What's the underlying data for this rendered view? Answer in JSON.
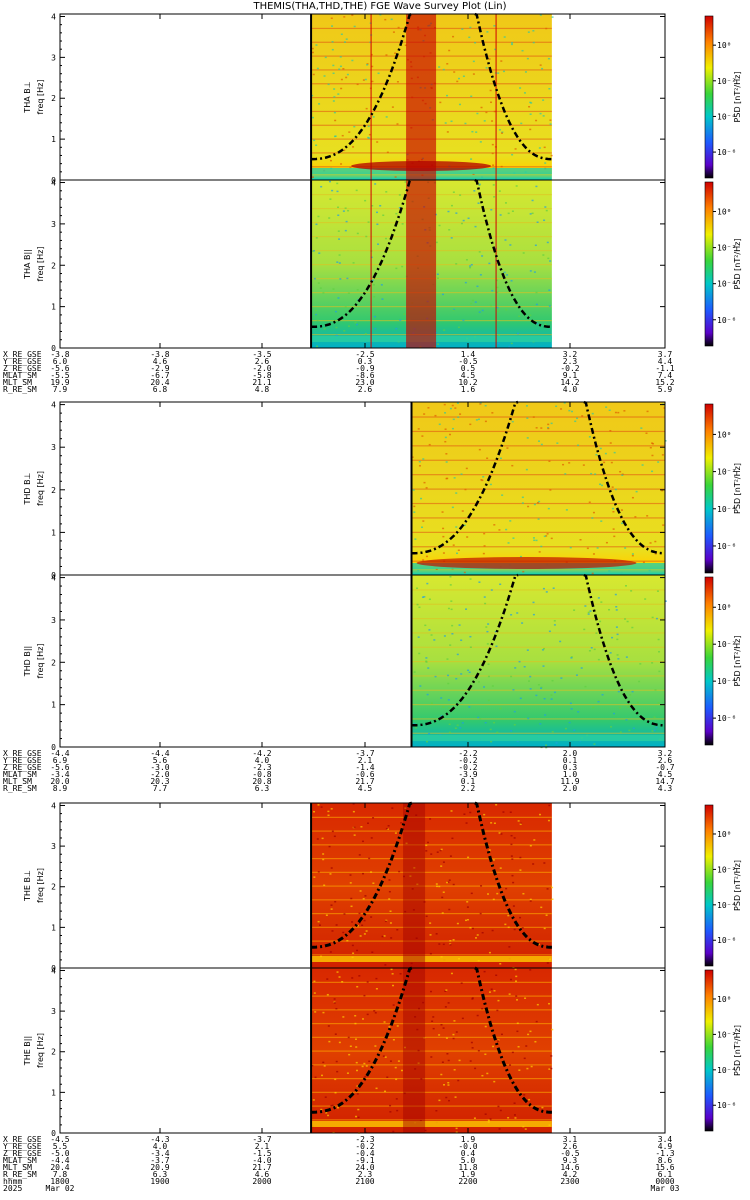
{
  "title": "THEMIS(THA,THD,THE) FGE Wave Survey Plot (Lin)",
  "colors": {
    "bar_low": "#000000",
    "bar_mid1": "#5a00c8",
    "bar_mid2": "#1e5aff",
    "bar_mid3": "#00c8c8",
    "bar_mid4": "#39d53a",
    "bar_mid5": "#f0f000",
    "bar_mid6": "#ff8000",
    "bar_high": "#d00000"
  },
  "chart_data": [
    {
      "type": "heatmap",
      "probe": "THA",
      "panels": [
        {
          "id": "tha-bl",
          "label": "THA B⊥",
          "ylabel": "freq [Hz]",
          "data_start_frac": 0.415,
          "data_end_frac": 0.813,
          "intensity": "moderate"
        },
        {
          "id": "tha-bll",
          "label": "THA B||",
          "ylabel": "freq [Hz]",
          "data_start_frac": 0.415,
          "data_end_frac": 0.813,
          "intensity": "low"
        }
      ],
      "yticks": [
        "0",
        "1",
        "2",
        "3",
        "4"
      ],
      "ylim": [
        0,
        4
      ],
      "colorbar": {
        "label": "PSD [nT²/Hz]",
        "ticks": [
          "10⁰",
          "10⁻²",
          "10⁻⁴",
          "10⁻⁶"
        ]
      },
      "ephemeris": {
        "rows": [
          {
            "label": "X_RE_GSE",
            "values": [
              "-3.8",
              "-3.8",
              "-3.5",
              "-2.5",
              "1.4",
              "3.2",
              "3.7"
            ]
          },
          {
            "label": "Y_RE_GSE",
            "values": [
              "6.0",
              "4.6",
              "2.6",
              "0.3",
              "-0.5",
              "2.3",
              "4.4"
            ]
          },
          {
            "label": "Z_RE_GSE",
            "values": [
              "-5.6",
              "-2.9",
              "-2.0",
              "-0.9",
              "0.5",
              "-0.2",
              "-1.1"
            ]
          },
          {
            "label": "MLAT_SM",
            "values": [
              "-5.5",
              "-6.7",
              "-5.8",
              "-8.6",
              "4.5",
              "9.1",
              "7.4"
            ]
          },
          {
            "label": "MLT_SM",
            "values": [
              "19.9",
              "20.4",
              "21.1",
              "23.0",
              "10.2",
              "14.2",
              "15.2"
            ]
          },
          {
            "label": "R_RE_SM",
            "values": [
              "7.9",
              "6.8",
              "4.8",
              "2.6",
              "1.6",
              "4.0",
              "5.9"
            ]
          }
        ]
      }
    },
    {
      "type": "heatmap",
      "probe": "THD",
      "panels": [
        {
          "id": "thd-bl",
          "label": "THD B⊥",
          "ylabel": "freq [Hz]",
          "data_start_frac": 0.581,
          "data_end_frac": 1.0,
          "intensity": "moderate"
        },
        {
          "id": "thd-bll",
          "label": "THD B||",
          "ylabel": "freq [Hz]",
          "data_start_frac": 0.581,
          "data_end_frac": 1.0,
          "intensity": "low"
        }
      ],
      "yticks": [
        "0",
        "1",
        "2",
        "3",
        "4"
      ],
      "ylim": [
        0,
        4
      ],
      "colorbar": {
        "label": "PSD [nT²/Hz]",
        "ticks": [
          "10⁰",
          "10⁻²",
          "10⁻⁴",
          "10⁻⁶"
        ]
      },
      "ephemeris": {
        "rows": [
          {
            "label": "X_RE_GSE",
            "values": [
              "-4.4",
              "-4.4",
              "-4.2",
              "-3.7",
              "-2.2",
              "2.0",
              "3.2"
            ]
          },
          {
            "label": "Y_RE_GSE",
            "values": [
              "6.9",
              "5.6",
              "4.0",
              "2.1",
              "-0.2",
              "0.1",
              "2.6"
            ]
          },
          {
            "label": "Z_RE_GSE",
            "values": [
              "-5.6",
              "-3.0",
              "-2.3",
              "-1.4",
              "-0.2",
              "0.3",
              "-0.7"
            ]
          },
          {
            "label": "MLAT_SM",
            "values": [
              "-3.4",
              "-2.0",
              "-0.8",
              "-0.6",
              "-3.9",
              "1.0",
              "4.5"
            ]
          },
          {
            "label": "MLT_SM",
            "values": [
              "20.0",
              "20.3",
              "20.8",
              "21.7",
              "0.1",
              "11.9",
              "14.7"
            ]
          },
          {
            "label": "R_RE_SM",
            "values": [
              "8.9",
              "7.7",
              "6.3",
              "4.5",
              "2.2",
              "2.0",
              "4.3"
            ]
          }
        ]
      }
    },
    {
      "type": "heatmap",
      "probe": "THE",
      "panels": [
        {
          "id": "the-bl",
          "label": "THE B⊥",
          "ylabel": "freq [Hz]",
          "data_start_frac": 0.415,
          "data_end_frac": 0.813,
          "intensity": "high"
        },
        {
          "id": "the-bll",
          "label": "THE B||",
          "ylabel": "freq [Hz]",
          "data_start_frac": 0.415,
          "data_end_frac": 0.813,
          "intensity": "high"
        }
      ],
      "yticks": [
        "0",
        "1",
        "2",
        "3",
        "4"
      ],
      "ylim": [
        0,
        4
      ],
      "colorbar": {
        "label": "PSD [nT²/Hz]",
        "ticks": [
          "10⁰",
          "10⁻²",
          "10⁻⁴",
          "10⁻⁶"
        ]
      },
      "ephemeris": {
        "rows": [
          {
            "label": "X_RE_GSE",
            "values": [
              "-4.5",
              "-4.3",
              "-3.7",
              "-2.3",
              "1.9",
              "3.1",
              "3.4"
            ]
          },
          {
            "label": "Y_RE_GSE",
            "values": [
              "5.5",
              "4.0",
              "2.1",
              "-0.2",
              "-0.0",
              "2.6",
              "4.9"
            ]
          },
          {
            "label": "Z_RE_GSE",
            "values": [
              "-5.0",
              "-3.4",
              "-1.5",
              "-0.4",
              "0.4",
              "-0.5",
              "-1.3"
            ]
          },
          {
            "label": "MLAT_SM",
            "values": [
              "-4.4",
              "-3.7",
              "-4.0",
              "-9.1",
              "5.0",
              "9.3",
              "8.6"
            ]
          },
          {
            "label": "MLT_SM",
            "values": [
              "20.4",
              "20.9",
              "21.7",
              "24.0",
              "11.8",
              "14.6",
              "15.6"
            ]
          },
          {
            "label": "R_RE_SM",
            "values": [
              "7.8",
              "6.3",
              "4.6",
              "2.3",
              "1.9",
              "4.2",
              "6.1"
            ]
          },
          {
            "label": "hhmm",
            "values": [
              "1800",
              "1900",
              "2000",
              "2100",
              "2200",
              "2300",
              "0000"
            ]
          }
        ],
        "date_row": {
          "label": "2025",
          "start": "Mar 02",
          "end": "Mar 03"
        }
      }
    }
  ]
}
